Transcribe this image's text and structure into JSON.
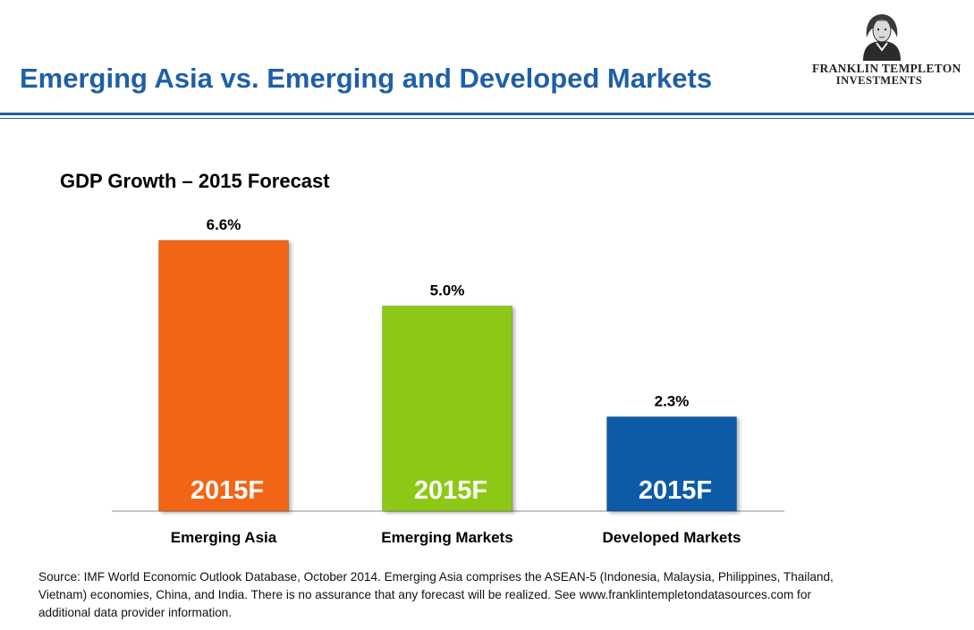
{
  "header": {
    "title": "Emerging Asia vs. Emerging and Developed Markets",
    "brand_line1": "FRANKLIN TEMPLETON",
    "brand_line2": "INVESTMENTS"
  },
  "chart_data": {
    "type": "bar",
    "title": "GDP Growth – 2015 Forecast",
    "categories": [
      "Emerging Asia",
      "Emerging Markets",
      "Developed Markets"
    ],
    "values": [
      6.6,
      5.0,
      2.3
    ],
    "value_labels": [
      "6.6%",
      "5.0%",
      "2.3%"
    ],
    "bar_inner_label": "2015F",
    "colors": [
      "#f26512",
      "#8dc815",
      "#0e5aa7"
    ],
    "ylim": [
      0,
      8
    ],
    "xlabel": "",
    "ylabel": "",
    "grid": false
  },
  "footer": {
    "source": "Source: IMF World Economic Outlook Database, October 2014. Emerging Asia comprises the ASEAN-5 (Indonesia, Malaysia, Philippines, Thailand, Vietnam) economies, China, and India. There is no assurance that any forecast will be realized. See www.franklintempletondatasources.com  for additional data provider information."
  }
}
